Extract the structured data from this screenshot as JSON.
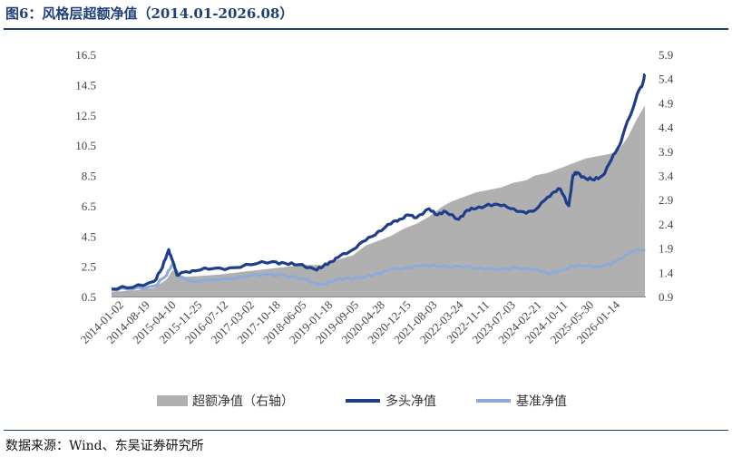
{
  "title": "图6：风格层超额净值（2014.01-2026.08）",
  "source": "数据来源：Wind、东吴证券研究所",
  "colors": {
    "title": "#1f3f7a",
    "excess_fill": "#b0b0b0",
    "long": "#1e3d8a",
    "benchmark": "#8eaadb"
  },
  "chart_data": {
    "type": "line+area",
    "x_tick_labels": [
      "2014-01-02",
      "2014-08-19",
      "2015-04-10",
      "2015-11-25",
      "2016-07-12",
      "2017-03-02",
      "2017-10-18",
      "2018-06-05",
      "2019-01-18",
      "2019-09-05",
      "2020-04-28",
      "2020-12-15",
      "2021-08-03",
      "2022-03-24",
      "2022-11-11",
      "2023-07-03",
      "2024-02-21",
      "2024-10-11",
      "2025-05-30",
      "2026-01-14"
    ],
    "x_range": [
      2014.0,
      2026.62
    ],
    "y_left": {
      "ticks": [
        "0.5",
        "2.5",
        "4.5",
        "6.5",
        "8.5",
        "10.5",
        "12.5",
        "14.5",
        "16.5"
      ],
      "range": [
        0.5,
        16.5
      ]
    },
    "y_right": {
      "ticks": [
        "0.9",
        "1.4",
        "1.9",
        "2.4",
        "2.9",
        "3.4",
        "3.9",
        "4.4",
        "4.9",
        "5.4",
        "5.9"
      ],
      "range": [
        0.9,
        5.9
      ]
    },
    "legend_position": "bottom",
    "series": [
      {
        "name": "超额净值（右轴）",
        "axis": "right",
        "style": "area",
        "x": [
          2014.0,
          2014.5,
          2015.0,
          2015.3,
          2015.45,
          2015.6,
          2016.0,
          2016.5,
          2017.0,
          2017.5,
          2018.0,
          2018.5,
          2019.0,
          2019.3,
          2019.7,
          2020.0,
          2020.3,
          2020.6,
          2020.9,
          2021.2,
          2021.5,
          2021.8,
          2022.0,
          2022.3,
          2022.6,
          2022.9,
          2023.2,
          2023.5,
          2023.8,
          2024.0,
          2024.3,
          2024.6,
          2024.9,
          2025.2,
          2025.5,
          2025.8,
          2026.0,
          2026.2,
          2026.4,
          2026.6
        ],
        "values": [
          1.0,
          1.02,
          1.08,
          1.25,
          1.45,
          1.3,
          1.32,
          1.35,
          1.4,
          1.45,
          1.5,
          1.55,
          1.55,
          1.65,
          1.75,
          1.95,
          2.05,
          2.15,
          2.3,
          2.4,
          2.55,
          2.75,
          2.85,
          2.95,
          3.05,
          3.1,
          3.15,
          3.25,
          3.3,
          3.4,
          3.45,
          3.55,
          3.65,
          3.75,
          3.8,
          3.85,
          3.95,
          4.2,
          4.55,
          4.85
        ]
      },
      {
        "name": "多头净值",
        "axis": "left",
        "style": "line",
        "x": [
          2014.0,
          2014.5,
          2015.0,
          2015.2,
          2015.35,
          2015.45,
          2015.55,
          2015.7,
          2015.9,
          2016.3,
          2016.8,
          2017.3,
          2017.8,
          2018.1,
          2018.4,
          2018.8,
          2019.0,
          2019.2,
          2019.4,
          2019.7,
          2020.0,
          2020.3,
          2020.6,
          2020.8,
          2021.0,
          2021.2,
          2021.5,
          2021.7,
          2021.9,
          2022.2,
          2022.4,
          2022.6,
          2022.9,
          2023.2,
          2023.5,
          2023.8,
          2024.0,
          2024.2,
          2024.4,
          2024.6,
          2024.8,
          2024.9,
          2025.0,
          2025.2,
          2025.4,
          2025.6,
          2025.8,
          2026.0,
          2026.15,
          2026.3,
          2026.45,
          2026.55,
          2026.6
        ],
        "values": [
          1.0,
          1.1,
          1.5,
          2.4,
          3.6,
          2.8,
          1.9,
          2.1,
          2.2,
          2.3,
          2.4,
          2.6,
          2.8,
          2.7,
          2.6,
          2.3,
          2.5,
          2.8,
          3.2,
          3.6,
          4.2,
          4.8,
          5.3,
          5.6,
          5.9,
          5.7,
          6.3,
          5.9,
          6.1,
          5.6,
          6.2,
          6.3,
          6.6,
          6.5,
          6.3,
          6.0,
          6.2,
          6.8,
          7.3,
          7.6,
          6.5,
          8.5,
          8.7,
          8.3,
          8.2,
          8.5,
          9.5,
          10.5,
          11.8,
          12.8,
          14.1,
          14.6,
          15.2
        ]
      },
      {
        "name": "基准净值",
        "axis": "left",
        "style": "line",
        "x": [
          2014.0,
          2014.5,
          2015.0,
          2015.3,
          2015.45,
          2015.6,
          2015.9,
          2016.5,
          2017.0,
          2017.5,
          2018.0,
          2018.4,
          2018.8,
          2019.0,
          2019.3,
          2019.6,
          2020.0,
          2020.3,
          2020.6,
          2021.0,
          2021.3,
          2021.6,
          2022.0,
          2022.4,
          2022.8,
          2023.2,
          2023.6,
          2024.0,
          2024.3,
          2024.6,
          2024.9,
          2025.2,
          2025.5,
          2025.8,
          2026.0,
          2026.2,
          2026.4,
          2026.6
        ],
        "values": [
          0.95,
          0.98,
          1.2,
          1.9,
          2.7,
          1.8,
          1.5,
          1.6,
          1.8,
          1.9,
          2.0,
          1.7,
          1.4,
          1.3,
          1.6,
          1.7,
          1.8,
          2.0,
          2.3,
          2.4,
          2.5,
          2.6,
          2.4,
          2.5,
          2.3,
          2.3,
          2.4,
          2.3,
          2.0,
          2.2,
          2.5,
          2.5,
          2.5,
          2.6,
          3.0,
          3.3,
          3.6,
          3.5
        ]
      }
    ]
  }
}
